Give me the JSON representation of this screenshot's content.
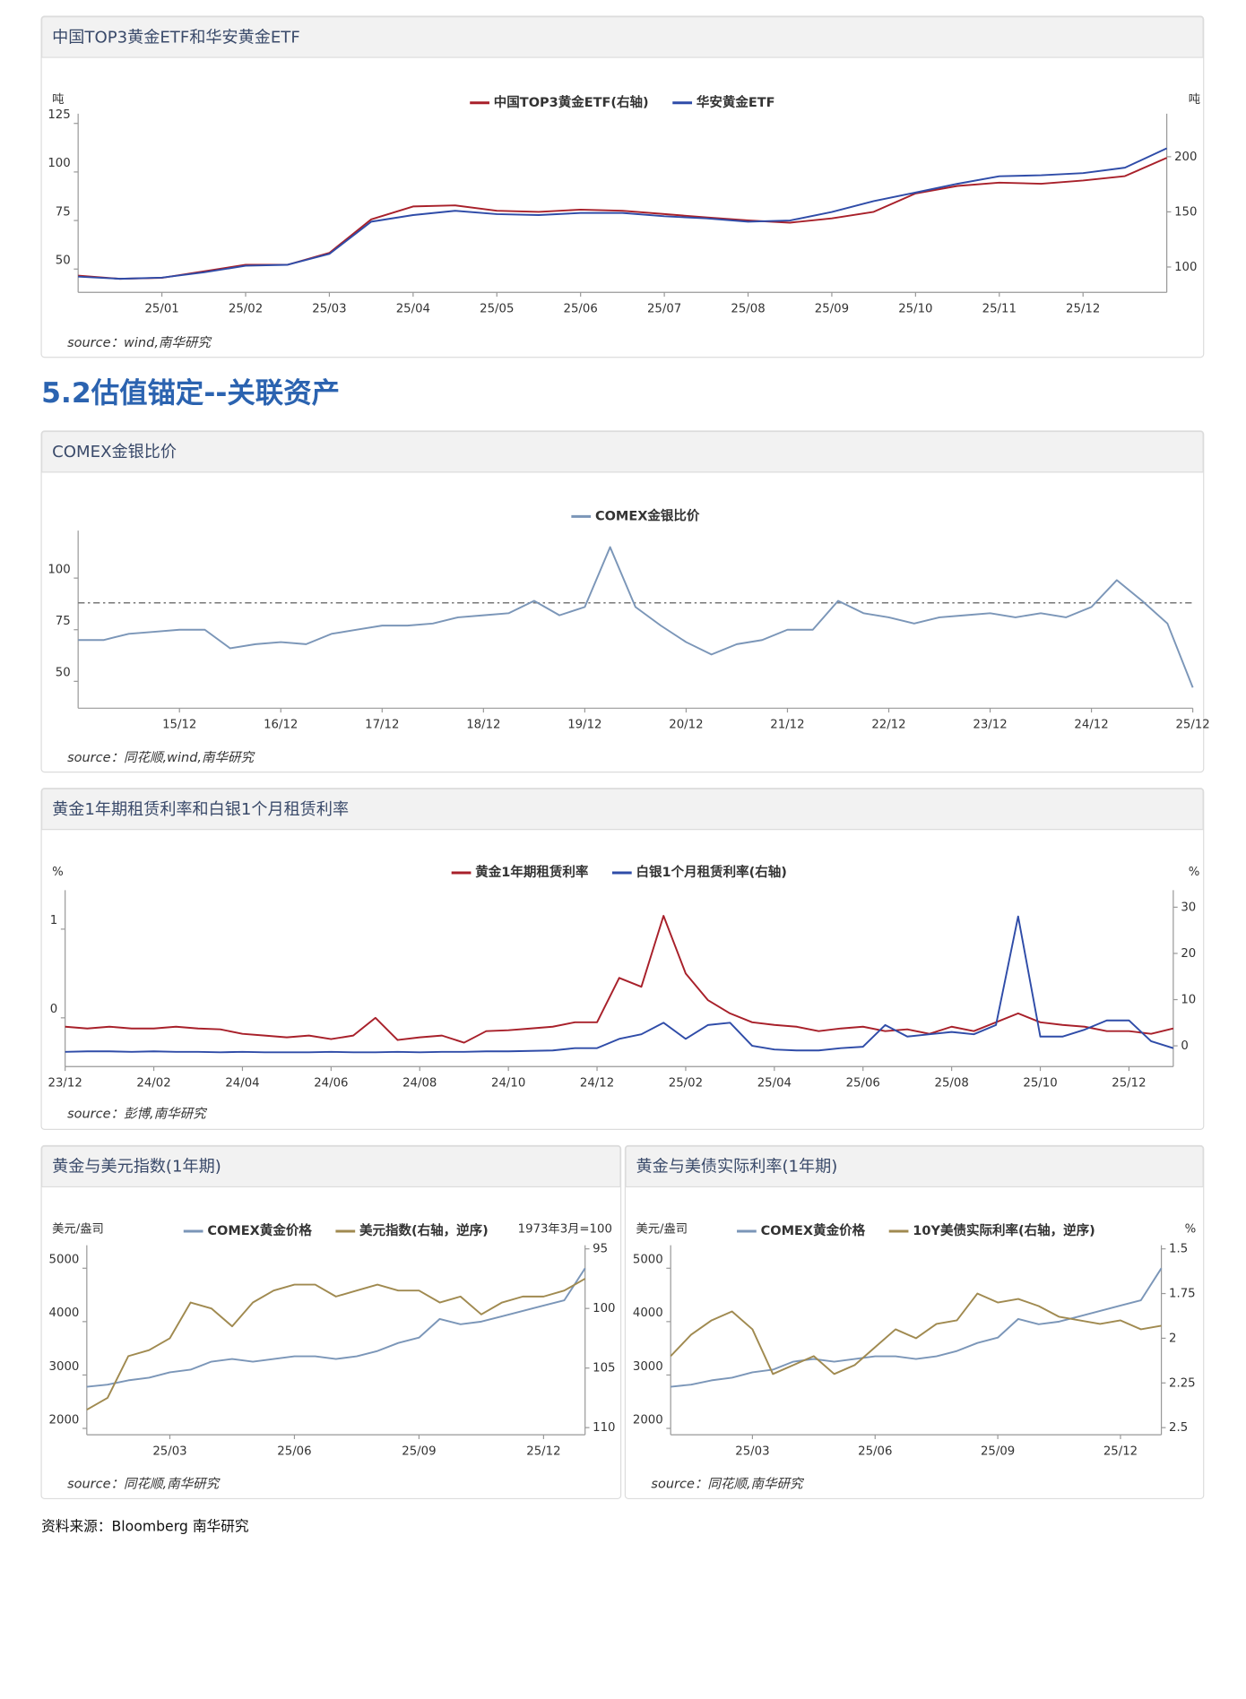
{
  "heading": "5.2估值锚定--关联资产",
  "footer": "资料来源：Bloomberg 南华研究",
  "chart_data": [
    {
      "type": "line",
      "title": "中国TOP3黄金ETF和华安黄金ETF",
      "source": "source：wind,南华研究",
      "y_unit": "吨",
      "y2_unit": "吨",
      "categories": [
        null,
        null,
        "25/01",
        null,
        "25/02",
        null,
        "25/03",
        null,
        "25/04",
        null,
        "25/05",
        null,
        "25/06",
        null,
        "25/07",
        null,
        "25/08",
        null,
        "25/09",
        null,
        "25/10",
        null,
        "25/11",
        null,
        "25/12",
        null,
        null
      ],
      "series": [
        {
          "name": "中国TOP3黄金ETF(右轴)",
          "color": "#a8202a",
          "axis": "y2",
          "values": [
            92.2,
            89.3,
            90.2,
            96.1,
            102,
            102,
            112.8,
            143.2,
            154.9,
            155.9,
            151,
            150,
            152,
            151,
            148,
            145,
            142.2,
            140.2,
            144.1,
            150,
            166.7,
            173.5,
            176.5,
            175.5,
            178.4,
            182.4,
            199
          ]
        },
        {
          "name": "华安黄金ETF",
          "color": "#2f4ca8",
          "values": [
            46.1,
            45,
            45.6,
            48.3,
            51.7,
            52.2,
            57.8,
            74.4,
            77.8,
            80,
            78.3,
            77.8,
            78.9,
            78.9,
            77.2,
            76.1,
            74.4,
            75,
            79.4,
            85,
            89.4,
            93.9,
            97.8,
            98.3,
            99.4,
            102.2,
            112.2
          ]
        }
      ],
      "ylim": [
        38,
        130
      ],
      "yticks": [
        50,
        75,
        100,
        125
      ],
      "y2lim": [
        77,
        239
      ],
      "y2ticks": [
        100,
        150,
        200
      ]
    },
    {
      "type": "line",
      "title": "COMEX金银比价",
      "source": "source：同花顺,wind,南华研究",
      "categories": [
        null,
        null,
        null,
        null,
        "15/12",
        null,
        null,
        null,
        "16/12",
        null,
        null,
        null,
        "17/12",
        null,
        null,
        null,
        "18/12",
        null,
        null,
        null,
        "19/12",
        null,
        null,
        null,
        "20/12",
        null,
        null,
        null,
        "21/12",
        null,
        null,
        null,
        "22/12",
        null,
        null,
        null,
        "23/12",
        null,
        null,
        null,
        "24/12",
        null,
        null,
        null,
        "25/12"
      ],
      "series": [
        {
          "name": "COMEX金银比价",
          "color": "#7b96b8",
          "values": [
            70,
            70,
            73,
            74,
            75,
            75,
            66,
            68,
            69,
            68,
            73,
            75,
            77,
            77,
            78,
            81,
            82,
            83,
            89,
            82,
            86,
            115,
            86,
            77,
            69,
            63,
            68,
            70,
            75,
            75,
            89,
            83,
            81,
            78,
            81,
            82,
            83,
            81,
            83,
            81,
            86,
            99,
            89,
            78,
            47
          ]
        }
      ],
      "hline": 88,
      "ylim": [
        37,
        123
      ],
      "yticks": [
        50,
        75,
        100
      ]
    },
    {
      "type": "line",
      "title": "黄金1年期租赁利率和白银1个月租赁利率",
      "source": "source：彭博,南华研究",
      "y_unit": "%",
      "y2_unit": "%",
      "categories": [
        "23/12",
        null,
        null,
        null,
        "24/02",
        null,
        null,
        null,
        "24/04",
        null,
        null,
        null,
        "24/06",
        null,
        null,
        null,
        "24/08",
        null,
        null,
        null,
        "24/10",
        null,
        null,
        null,
        "24/12",
        null,
        null,
        null,
        "25/02",
        null,
        null,
        null,
        "25/04",
        null,
        null,
        null,
        "25/06",
        null,
        null,
        null,
        "25/08",
        null,
        null,
        null,
        "25/10",
        null,
        null,
        null,
        "25/12",
        null,
        null
      ],
      "series": [
        {
          "name": "黄金1年期租赁利率",
          "color": "#a8202a",
          "values": [
            -0.1,
            -0.12,
            -0.1,
            -0.12,
            -0.12,
            -0.1,
            -0.12,
            -0.13,
            -0.18,
            -0.2,
            -0.22,
            -0.2,
            -0.24,
            -0.2,
            0,
            -0.25,
            -0.22,
            -0.2,
            -0.28,
            -0.15,
            -0.14,
            -0.12,
            -0.1,
            -0.05,
            -0.05,
            0.45,
            0.35,
            1.15,
            0.5,
            0.2,
            0.05,
            -0.05,
            -0.08,
            -0.1,
            -0.15,
            -0.12,
            -0.1,
            -0.15,
            -0.13,
            -0.18,
            -0.1,
            -0.15,
            -0.05,
            0.05,
            -0.05,
            -0.08,
            -0.1,
            -0.15,
            -0.15,
            -0.18,
            -0.12
          ]
        },
        {
          "name": "白银1个月租赁利率(右轴)",
          "color": "#2f4ca8",
          "axis": "y2",
          "values": [
            -1.3,
            -1.2,
            -1.2,
            -1.3,
            -1.2,
            -1.3,
            -1.3,
            -1.4,
            -1.3,
            -1.4,
            -1.4,
            -1.4,
            -1.3,
            -1.4,
            -1.4,
            -1.3,
            -1.4,
            -1.3,
            -1.3,
            -1.2,
            -1.2,
            -1.1,
            -1.0,
            -0.5,
            -0.5,
            1.5,
            2.5,
            5,
            1.5,
            4.5,
            5,
            0,
            -0.8,
            -1,
            -1,
            -0.5,
            -0.2,
            4.5,
            2,
            2.5,
            3,
            2.5,
            4.5,
            28,
            2,
            2,
            3.5,
            5.5,
            5.5,
            1,
            -0.5
          ]
        }
      ],
      "ylim": [
        -0.55,
        1.44
      ],
      "yticks": [
        0,
        1
      ],
      "y2lim": [
        -4.5,
        33.7
      ],
      "y2ticks": [
        0,
        10,
        20,
        30
      ]
    },
    {
      "type": "line",
      "title": "黄金与美元指数(1年期)",
      "source": "source：同花顺,南华研究",
      "y_unit": "美元/盎司",
      "y2_unit": "1973年3月=100",
      "categories": [
        null,
        null,
        null,
        null,
        "25/03",
        null,
        null,
        null,
        null,
        null,
        "25/06",
        null,
        null,
        null,
        null,
        null,
        "25/09",
        null,
        null,
        null,
        null,
        null,
        "25/12",
        null,
        null
      ],
      "series": [
        {
          "name": "COMEX黄金价格",
          "color": "#7b96b8",
          "values": [
            2780,
            2820,
            2900,
            2950,
            3050,
            3100,
            3250,
            3300,
            3250,
            3300,
            3350,
            3350,
            3300,
            3350,
            3450,
            3600,
            3700,
            4050,
            3950,
            4000,
            4100,
            4200,
            4300,
            4400,
            5000
          ]
        },
        {
          "name": "美元指数(右轴，逆序)",
          "color": "#a08a50",
          "axis": "y2",
          "values": [
            108.5,
            107.5,
            104,
            103.5,
            102.5,
            99.5,
            100,
            101.5,
            99.5,
            98.5,
            98,
            98,
            99,
            98.5,
            98,
            98.5,
            98.5,
            99.5,
            99,
            100.5,
            99.5,
            99,
            99,
            98.5,
            97.5
          ]
        }
      ],
      "ylim": [
        1880,
        5430
      ],
      "yticks": [
        2000,
        3000,
        4000,
        5000
      ],
      "y2lim": [
        94.7,
        110.6
      ],
      "y2ticks": [
        95,
        100,
        105,
        110
      ],
      "y2_inverted": true
    },
    {
      "type": "line",
      "title": "黄金与美债实际利率(1年期)",
      "source": "source：同花顺,南华研究",
      "y_unit": "美元/盎司",
      "y2_unit": "%",
      "categories": [
        null,
        null,
        null,
        null,
        "25/03",
        null,
        null,
        null,
        null,
        null,
        "25/06",
        null,
        null,
        null,
        null,
        null,
        "25/09",
        null,
        null,
        null,
        null,
        null,
        "25/12",
        null,
        null
      ],
      "series": [
        {
          "name": "COMEX黄金价格",
          "color": "#7b96b8",
          "values": [
            2780,
            2820,
            2900,
            2950,
            3050,
            3100,
            3250,
            3300,
            3250,
            3300,
            3350,
            3350,
            3300,
            3350,
            3450,
            3600,
            3700,
            4050,
            3950,
            4000,
            4100,
            4200,
            4300,
            4400,
            5000
          ]
        },
        {
          "name": "10Y美债实际利率(右轴，逆序)",
          "color": "#a08a50",
          "axis": "y2",
          "values": [
            2.1,
            1.98,
            1.9,
            1.85,
            1.95,
            2.2,
            2.15,
            2.1,
            2.2,
            2.15,
            2.05,
            1.95,
            2,
            1.92,
            1.9,
            1.75,
            1.8,
            1.78,
            1.82,
            1.88,
            1.9,
            1.92,
            1.9,
            1.95,
            1.93
          ]
        }
      ],
      "ylim": [
        1880,
        5430
      ],
      "yticks": [
        2000,
        3000,
        4000,
        5000
      ],
      "y2lim": [
        1.48,
        2.54
      ],
      "y2ticks": [
        1.5,
        1.75,
        2,
        2.25,
        2.5
      ],
      "y2_inverted": true
    }
  ]
}
